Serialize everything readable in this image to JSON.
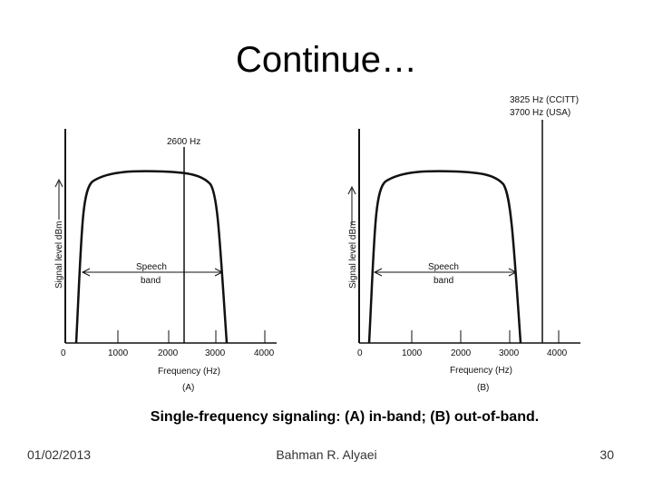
{
  "slide": {
    "title": "Continue…",
    "caption": "Single-frequency signaling: (A) in-band; (B) out-of-band.",
    "footer_date": "01/02/2013",
    "footer_author": "Bahman R. Alyaei",
    "page_number": "30"
  },
  "diagram": {
    "ylabel": "Signal level dBm",
    "xlabel": "Frequency (Hz)",
    "band_label_line1": "Speech",
    "band_label_line2": "band",
    "panel_a": {
      "id": "(A)",
      "tone_label": "2600 Hz",
      "ticks": [
        "0",
        "1000",
        "2000",
        "3000",
        "4000"
      ]
    },
    "panel_b": {
      "id": "(B)",
      "tone_label_1": "3825 Hz (CCITT)",
      "tone_label_2": "3700 Hz (USA)",
      "ticks": [
        "0",
        "1000",
        "2000",
        "3000",
        "4000"
      ]
    }
  }
}
